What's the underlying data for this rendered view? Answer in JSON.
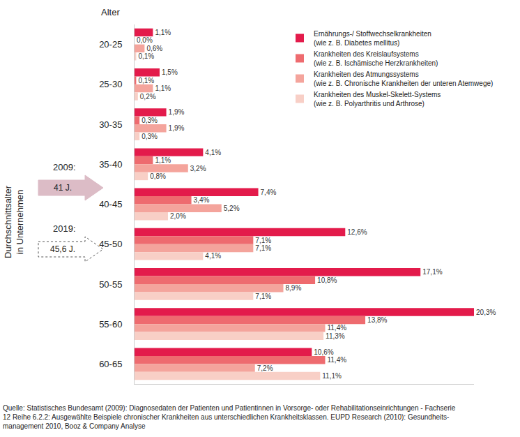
{
  "chart_data": {
    "type": "bar",
    "orientation": "horizontal",
    "ylabel": "Alter",
    "categories": [
      "20-25",
      "25-30",
      "30-35",
      "35-40",
      "40-45",
      "45-50",
      "50-55",
      "55-60",
      "60-65"
    ],
    "series": [
      {
        "name": "Ernährungs-/ Stoffwechselkrankheiten\n(wie z. B. Diabetes mellitus)",
        "color": "#e31b4b",
        "values": [
          1.1,
          1.5,
          1.9,
          4.1,
          7.4,
          12.6,
          17.1,
          20.3,
          10.6
        ],
        "value_labels": [
          "1,1%",
          "1,5%",
          "1,9%",
          "4,1%",
          "7,4%",
          "12,6%",
          "17,1%",
          "20,3%",
          "10,6%"
        ]
      },
      {
        "name": "Krankheiten des Kreislaufsystems\n(wie z. B. Ischämische Herzkrankheiten)",
        "color": "#ee6b6f",
        "values": [
          0.0,
          0.1,
          0.3,
          1.1,
          3.4,
          7.1,
          10.8,
          13.8,
          11.4
        ],
        "value_labels": [
          "0,0%",
          "0,1%",
          "0,3%",
          "1,1%",
          "3,4%",
          "7,1%",
          "10,8%",
          "13,8%",
          "11,4%"
        ]
      },
      {
        "name": "Krankheiten des Atmungssystems\n(wie z. B. Chronische Krankheiten der unteren Atemwege)",
        "color": "#f4a49c",
        "values": [
          0.6,
          1.1,
          1.9,
          3.2,
          5.2,
          7.1,
          8.9,
          11.4,
          7.2
        ],
        "value_labels": [
          "0,6%",
          "1,1%",
          "1,9%",
          "3,2%",
          "5,2%",
          "7,1%",
          "8,9%",
          "11,4%",
          "7,2%"
        ]
      },
      {
        "name": "Krankheiten des Muskel-Skelett-Systems\n(wie z. B. Polyarthritis und Arthrose)",
        "color": "#f8cfc6",
        "values": [
          0.1,
          0.2,
          0.3,
          0.8,
          2.0,
          4.1,
          7.1,
          11.3,
          11.1
        ],
        "value_labels": [
          "0,1%",
          "0,2%",
          "0,3%",
          "0,8%",
          "2,0%",
          "4,1%",
          "7,1%",
          "11,3%",
          "11,1%"
        ]
      }
    ],
    "xlim": [
      0,
      20.3
    ],
    "tick_labels": "y",
    "data_labels": true,
    "grid": false,
    "legend": "top right",
    "annotations": {
      "average_age": "Durchschnittsalter\nin Unternehmen",
      "markers": [
        {
          "year": "2009:",
          "age": "41 J.",
          "line_style": "solid"
        },
        {
          "year": "2019:",
          "age": "45,6 J.",
          "line_style": "dashed"
        }
      ]
    },
    "source": "Quelle: Statistisches Bundesamt (2009): Diagnosedaten der Patienten und Patientinnen in Vorsorge- oder Rehabilitationseinrichtungen - Fachserie\n12 Reihe 6.2.2: Ausgewählte Beispiele chronischer Krankheiten aus unterschiedlichen Krankheitsklassen. EUPD Research (2010): Gesundheits-\nmanagement 2010, Booz & Company Analyse"
  }
}
